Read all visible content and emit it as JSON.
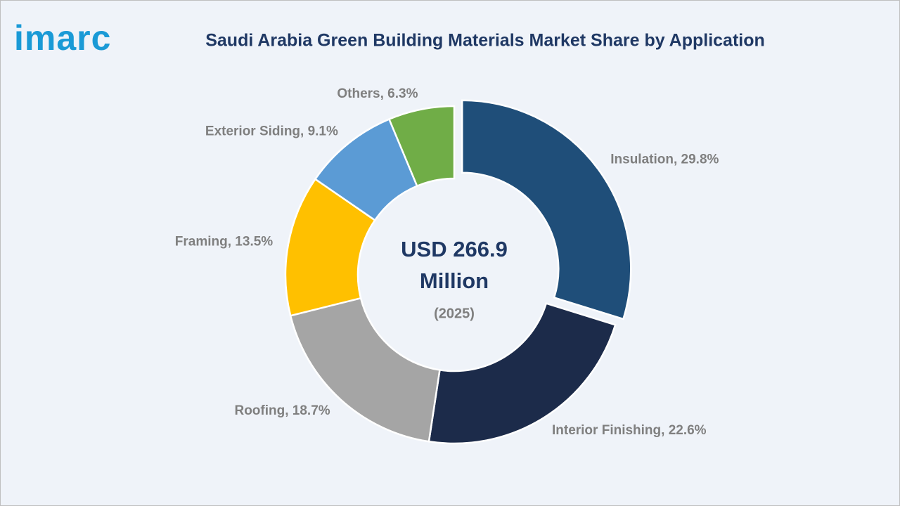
{
  "logo": "imarc",
  "chart_data": {
    "type": "donut",
    "title": "Saudi Arabia Green Building Materials Market Share by Application",
    "values": [
      29.8,
      22.6,
      18.7,
      13.5,
      9.1,
      6.3
    ],
    "value_labels": [
      "Insulation, 29.8%",
      "Interior Finishing, 22.6%",
      "Roofing, 18.7%",
      "Framing, 13.5%",
      "Exterior Siding, 9.1%",
      "Others, 6.3%"
    ],
    "colors": [
      "#1f4e79",
      "#1c2b4a",
      "#a5a5a5",
      "#ffc000",
      "#5b9bd5",
      "#70ad47"
    ],
    "center_text": [
      "USD 266.9",
      "Million"
    ],
    "center_subtext": "(2025)"
  }
}
